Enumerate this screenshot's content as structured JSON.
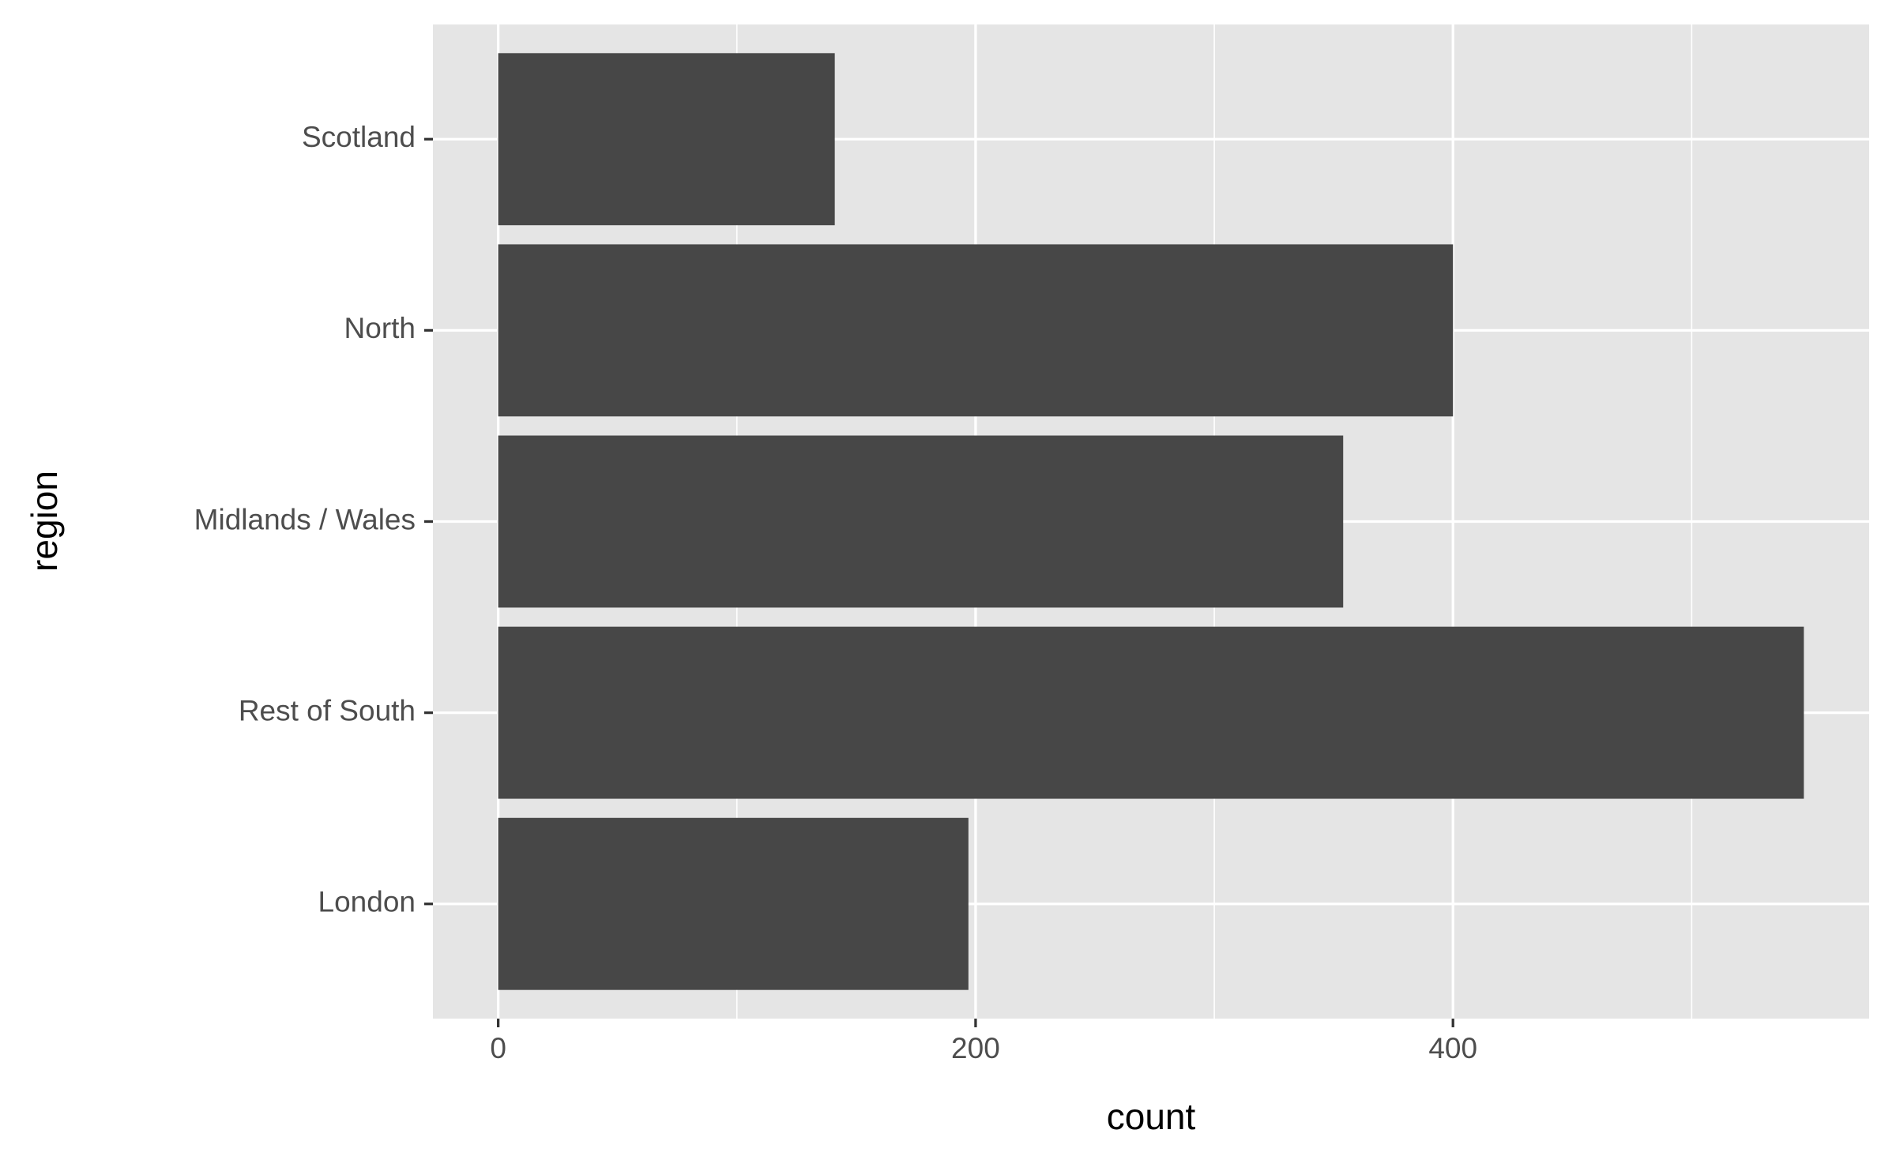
{
  "chart_data": {
    "type": "bar",
    "orientation": "horizontal",
    "x_label": "count",
    "y_label": "region",
    "categories": [
      "London",
      "Rest of South",
      "Midlands / Wales",
      "North",
      "Scotland"
    ],
    "values": [
      197,
      547,
      354,
      400,
      141
    ],
    "color": "#474747",
    "panel_color": "#e5e5e5",
    "grid": true,
    "xlim": [
      -27.35,
      574.35
    ],
    "xticks": [
      0,
      200,
      400
    ],
    "xminorticks": [
      100,
      300,
      500
    ]
  }
}
